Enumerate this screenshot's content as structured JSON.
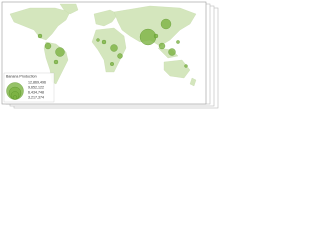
{
  "legend": {
    "title": "Banana Production",
    "labels": [
      "12,869,496",
      "9,652,122",
      "6,434,748",
      "3,217,374"
    ]
  }
}
